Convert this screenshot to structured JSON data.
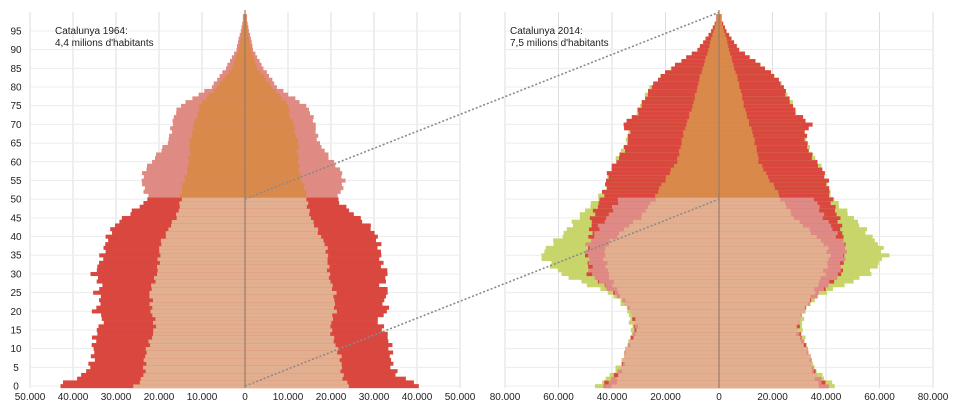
{
  "chart_data": [
    {
      "type": "population-pyramid",
      "title": "Catalunya 1964:",
      "subtitle": "4,4 milions d'habitants",
      "y_ticks": [
        "0",
        "5",
        "10",
        "15",
        "20",
        "25",
        "30",
        "35",
        "40",
        "45",
        "50",
        "55",
        "60",
        "65",
        "70",
        "75",
        "80",
        "85",
        "90",
        "95"
      ],
      "ylim": [
        0,
        100
      ],
      "x_ticks": [
        "50.000",
        "40.000",
        "30.000",
        "20.000",
        "10.000",
        "0",
        "10.000",
        "20.000",
        "30.000",
        "40.000",
        "50.000"
      ],
      "xlim": [
        -50000,
        50000
      ],
      "colors": {
        "outer": "#d9473f",
        "outer_old": "#e08a84",
        "inner": "#d98a4a",
        "inner_old": "#e2b090"
      },
      "age_profile": {
        "ages": [
          0,
          3,
          5,
          8,
          10,
          15,
          18,
          20,
          23,
          25,
          27,
          30,
          33,
          35,
          38,
          40,
          43,
          45,
          48,
          50,
          53,
          55,
          58,
          60,
          63,
          65,
          68,
          70,
          73,
          75,
          78,
          80,
          83,
          85,
          88,
          90,
          93,
          95,
          98
        ],
        "outer": [
          43000,
          38000,
          37000,
          36000,
          35500,
          34000,
          33000,
          36000,
          34000,
          35000,
          33000,
          35000,
          34000,
          34000,
          33000,
          32000,
          30000,
          28000,
          25000,
          23000,
          24000,
          24000,
          23000,
          21500,
          20000,
          18500,
          17500,
          17000,
          16000,
          15000,
          11000,
          8000,
          6000,
          4500,
          3000,
          2000,
          1500,
          1000,
          500
        ],
        "inner": [
          26000,
          24000,
          23500,
          23000,
          22500,
          21500,
          21500,
          22000,
          21500,
          22000,
          21500,
          21000,
          20500,
          20000,
          19500,
          18500,
          17500,
          16500,
          15500,
          15000,
          14500,
          14000,
          13500,
          13500,
          13000,
          13000,
          12000,
          12000,
          11000,
          11000,
          8500,
          6500,
          4500,
          3000,
          2200,
          1500,
          1000,
          700,
          300
        ]
      }
    },
    {
      "type": "population-pyramid",
      "title": "Catalunya 2014:",
      "subtitle": "7,5 milions d'habitants",
      "y_ticks": [],
      "ylim": [
        0,
        100
      ],
      "x_ticks": [
        "80.000",
        "60.000",
        "40.000",
        "20.000",
        "0",
        "20.000",
        "40.000",
        "60.000",
        "80.000"
      ],
      "xlim": [
        -80000,
        80000
      ],
      "colors": {
        "green": "#c7d56a",
        "outer": "#d9473f",
        "pink": "#df8a86",
        "inner": "#d98a4a",
        "inner_old": "#e2b090"
      },
      "age_profile": {
        "ages": [
          0,
          3,
          5,
          8,
          10,
          13,
          15,
          18,
          20,
          23,
          25,
          28,
          30,
          33,
          35,
          38,
          40,
          43,
          45,
          48,
          50,
          53,
          55,
          58,
          60,
          63,
          65,
          68,
          70,
          73,
          75,
          78,
          80,
          83,
          85,
          88,
          90,
          93,
          95,
          98
        ],
        "green": [
          45000,
          40000,
          38000,
          36000,
          35000,
          33000,
          32000,
          33000,
          34000,
          38000,
          42000,
          52000,
          58000,
          63000,
          67000,
          64000,
          60000,
          55000,
          52000,
          48000,
          46000,
          43000,
          42000,
          40000,
          38000,
          36000,
          35000,
          34000,
          33000,
          30000,
          29000,
          27000,
          26000,
          22000,
          18000,
          12000,
          8000,
          5000,
          3000,
          1000
        ],
        "outer": [
          43000,
          39000,
          37000,
          35000,
          34000,
          32000,
          31000,
          32000,
          33000,
          36000,
          39000,
          44000,
          48000,
          49000,
          50000,
          49000,
          48000,
          47000,
          47000,
          46000,
          45000,
          43000,
          42000,
          40000,
          38000,
          36000,
          35000,
          34000,
          36000,
          30000,
          29000,
          27000,
          26000,
          22000,
          18000,
          12000,
          8000,
          5000,
          3000,
          1000
        ],
        "pink": [
          43000,
          39000,
          37000,
          35000,
          34000,
          32000,
          31000,
          32000,
          33000,
          36000,
          39000,
          44000,
          48000,
          49000,
          50000,
          49000,
          46000,
          44000,
          42000,
          40000,
          38000,
          36000,
          34000,
          32000,
          30000,
          28000,
          26000,
          24000,
          22000,
          20000,
          18000,
          16000,
          14000,
          12000,
          10000,
          8000,
          6000,
          4000,
          2000,
          800
        ],
        "inner": [
          40000,
          38000,
          36000,
          35000,
          34000,
          32000,
          31000,
          32000,
          33000,
          35000,
          37000,
          40000,
          42000,
          43000,
          43000,
          41000,
          38000,
          34000,
          30000,
          27000,
          24000,
          22000,
          20000,
          18000,
          16000,
          15000,
          14000,
          13000,
          12000,
          11000,
          10000,
          9000,
          8000,
          7000,
          6000,
          5000,
          4000,
          3000,
          2000,
          800
        ]
      }
    }
  ]
}
